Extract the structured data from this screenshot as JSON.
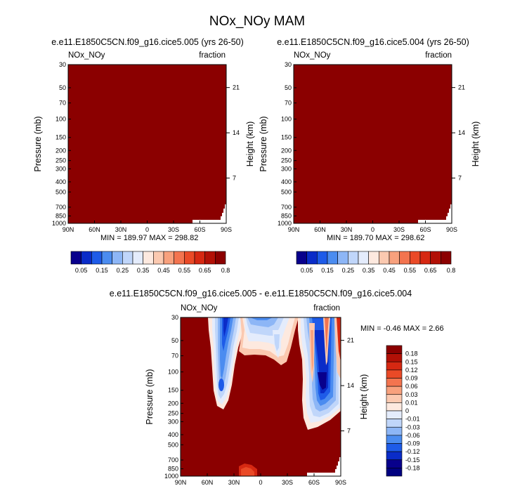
{
  "page_title": "NOx_NOy MAM",
  "stats": {
    "panel1": "MIN = 189.97   MAX = 298.82",
    "panel2": "MIN = 189.70   MAX = 298.62",
    "panel3": "MIN =  -0.46   MAX =   2.66"
  },
  "chart_data": [
    {
      "type": "heatmap",
      "title": "e.e11.E1850C5CN.f09_g16.cice5.005 (yrs 26-50)",
      "left_label": "NOx_NOy",
      "right_label": "fraction",
      "xlabel": "",
      "ylabel": "Pressure (mb)",
      "y2label": "Height (km)",
      "x_ticks": [
        "90N",
        "60N",
        "30N",
        "0",
        "30S",
        "60S",
        "90S"
      ],
      "y_ticks": [
        "30",
        "50",
        "70",
        "100",
        "150",
        "200",
        "250",
        "300",
        "400",
        "500",
        "700",
        "850",
        "1000"
      ],
      "y2_ticks": [
        "21",
        "14",
        "7"
      ],
      "y_scale": "log",
      "field": "uniform",
      "fill_color": "#8b0000",
      "colorbar_labels": [
        "0.05",
        "0.15",
        "0.25",
        "0.35",
        "0.45",
        "0.55",
        "0.65",
        "0.8"
      ],
      "colorbar_colors": [
        "#08008c",
        "#0a2cc8",
        "#1e5be8",
        "#4b8cf0",
        "#8db6f6",
        "#c0d6fa",
        "#e4ecfc",
        "#fde9df",
        "#fbc9b0",
        "#f8a17d",
        "#f3744f",
        "#ea4a27",
        "#d62812",
        "#b21006",
        "#8b0000"
      ]
    },
    {
      "type": "heatmap",
      "title": "e.e11.E1850C5CN.f09_g16.cice5.004 (yrs 26-50)",
      "left_label": "NOx_NOy",
      "right_label": "fraction",
      "xlabel": "",
      "ylabel": "Pressure (mb)",
      "y2label": "Height (km)",
      "x_ticks": [
        "90N",
        "60N",
        "30N",
        "0",
        "30S",
        "60S",
        "90S"
      ],
      "y_ticks": [
        "30",
        "50",
        "70",
        "100",
        "150",
        "200",
        "250",
        "300",
        "400",
        "500",
        "700",
        "850",
        "1000"
      ],
      "y2_ticks": [
        "21",
        "14",
        "7"
      ],
      "y_scale": "log",
      "field": "uniform",
      "fill_color": "#8b0000",
      "colorbar_labels": [
        "0.05",
        "0.15",
        "0.25",
        "0.35",
        "0.45",
        "0.55",
        "0.65",
        "0.8"
      ],
      "colorbar_colors": [
        "#08008c",
        "#0a2cc8",
        "#1e5be8",
        "#4b8cf0",
        "#8db6f6",
        "#c0d6fa",
        "#e4ecfc",
        "#fde9df",
        "#fbc9b0",
        "#f8a17d",
        "#f3744f",
        "#ea4a27",
        "#d62812",
        "#b21006",
        "#8b0000"
      ]
    },
    {
      "type": "heatmap",
      "title": "e.e11.E1850C5CN.f09_g16.cice5.005 - e.e11.E1850C5CN.f09_g16.cice5.004",
      "left_label": "NOx_NOy",
      "right_label": "fraction",
      "xlabel": "",
      "ylabel": "Pressure (mb)",
      "y2label": "Height (km)",
      "x_ticks": [
        "90N",
        "60N",
        "30N",
        "0",
        "30S",
        "60S",
        "90S"
      ],
      "y_ticks": [
        "30",
        "50",
        "70",
        "100",
        "150",
        "200",
        "250",
        "300",
        "400",
        "500",
        "700",
        "850",
        "1000"
      ],
      "y2_ticks": [
        "21",
        "14",
        "7"
      ],
      "y_scale": "log",
      "field": "difference",
      "colorbar_labels": [
        "0.18",
        "0.15",
        "0.12",
        "0.09",
        "0.06",
        "0.03",
        "0.01",
        "0",
        "-0.01",
        "-0.03",
        "-0.06",
        "-0.09",
        "-0.12",
        "-0.15",
        "-0.18"
      ],
      "colorbar_colors": [
        "#8b0000",
        "#b21006",
        "#d62812",
        "#ea4a27",
        "#f3744f",
        "#f8a17d",
        "#fbc9b0",
        "#fde9df",
        "#e4ecfc",
        "#c0d6fa",
        "#8db6f6",
        "#4b8cf0",
        "#1e5be8",
        "#0a2cc8",
        "#08008c",
        "#000080"
      ]
    }
  ]
}
